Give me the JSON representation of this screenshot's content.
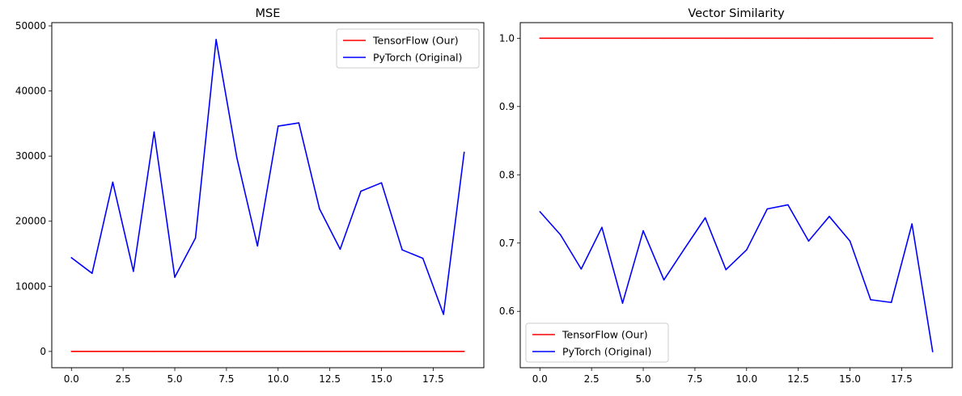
{
  "chart_data": [
    {
      "type": "line",
      "title": "MSE",
      "xlabel": "",
      "ylabel": "",
      "xlim": [
        -0.95,
        19.95
      ],
      "ylim": [
        -2500,
        50500
      ],
      "x_ticks": [
        0,
        2.5,
        5,
        7.5,
        10,
        12.5,
        15,
        17.5
      ],
      "x_tick_labels": [
        "0.0",
        "2.5",
        "5.0",
        "7.5",
        "10.0",
        "12.5",
        "15.0",
        "17.5"
      ],
      "y_ticks": [
        0,
        10000,
        20000,
        30000,
        40000,
        50000
      ],
      "y_tick_labels": [
        "0",
        "10000",
        "20000",
        "30000",
        "40000",
        "50000"
      ],
      "grid": false,
      "legend_position": "top-right",
      "x": [
        0,
        1,
        2,
        3,
        4,
        5,
        6,
        7,
        8,
        9,
        10,
        11,
        12,
        13,
        14,
        15,
        16,
        17,
        18,
        19
      ],
      "series": [
        {
          "name": "TensorFlow (Our)",
          "color": "#ff0000",
          "values": [
            0,
            0,
            0,
            0,
            0,
            0,
            0,
            0,
            0,
            0,
            0,
            0,
            0,
            0,
            0,
            0,
            0,
            0,
            0,
            0
          ]
        },
        {
          "name": "PyTorch (Original)",
          "color": "#0000ff",
          "values": [
            14400,
            12000,
            26000,
            12300,
            33700,
            11400,
            17400,
            47900,
            29800,
            16200,
            34600,
            35100,
            21900,
            15700,
            24600,
            25900,
            15600,
            14300,
            5700,
            30600
          ]
        }
      ]
    },
    {
      "type": "line",
      "title": "Vector Similarity",
      "xlabel": "",
      "ylabel": "",
      "xlim": [
        -0.95,
        19.95
      ],
      "ylim": [
        0.5174,
        1.0229
      ],
      "x_ticks": [
        0,
        2.5,
        5,
        7.5,
        10,
        12.5,
        15,
        17.5
      ],
      "x_tick_labels": [
        "0.0",
        "2.5",
        "5.0",
        "7.5",
        "10.0",
        "12.5",
        "15.0",
        "17.5"
      ],
      "y_ticks": [
        0.6,
        0.7,
        0.8,
        0.9,
        1.0
      ],
      "y_tick_labels": [
        "0.6",
        "0.7",
        "0.8",
        "0.9",
        "1.0"
      ],
      "grid": false,
      "legend_position": "bottom-left",
      "x": [
        0,
        1,
        2,
        3,
        4,
        5,
        6,
        7,
        8,
        9,
        10,
        11,
        12,
        13,
        14,
        15,
        16,
        17,
        18,
        19
      ],
      "series": [
        {
          "name": "TensorFlow (Our)",
          "color": "#ff0000",
          "values": [
            1,
            1,
            1,
            1,
            1,
            1,
            1,
            1,
            1,
            1,
            1,
            1,
            1,
            1,
            1,
            1,
            1,
            1,
            1,
            1
          ]
        },
        {
          "name": "PyTorch (Original)",
          "color": "#0000ff",
          "values": [
            0.746,
            0.712,
            0.662,
            0.723,
            0.612,
            0.718,
            0.646,
            0.692,
            0.737,
            0.661,
            0.69,
            0.75,
            0.756,
            0.703,
            0.739,
            0.703,
            0.617,
            0.613,
            0.728,
            0.541
          ]
        }
      ]
    }
  ]
}
